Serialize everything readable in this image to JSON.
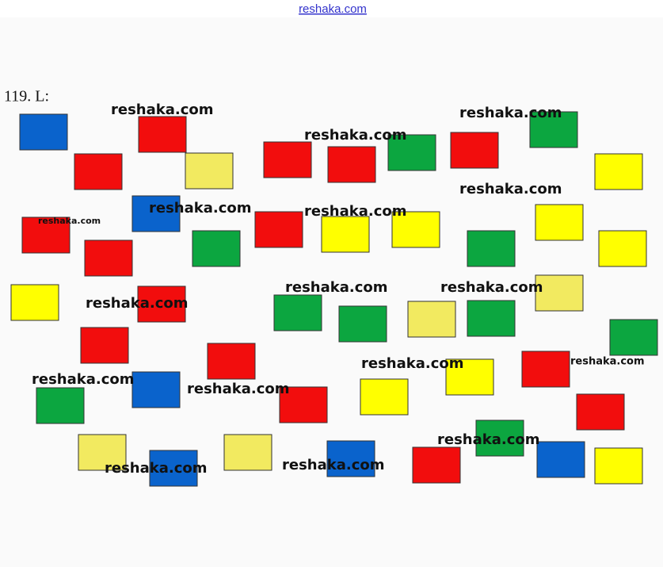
{
  "header": "reshaka.com",
  "label": "119. L:",
  "watermarks": [
    "reshaka.com",
    "reshaka.com",
    "reshaka.com",
    "reshaka.com",
    "reshaka.com",
    "reshaka.com",
    "reshaka.com",
    "reshaka.com",
    "reshaka.com",
    "reshaka.com",
    "reshaka.com",
    "reshaka.com",
    "reshaka.com",
    "reshaka.com",
    "reshaka.com",
    "reshaka.com",
    "reshaka.com"
  ]
}
